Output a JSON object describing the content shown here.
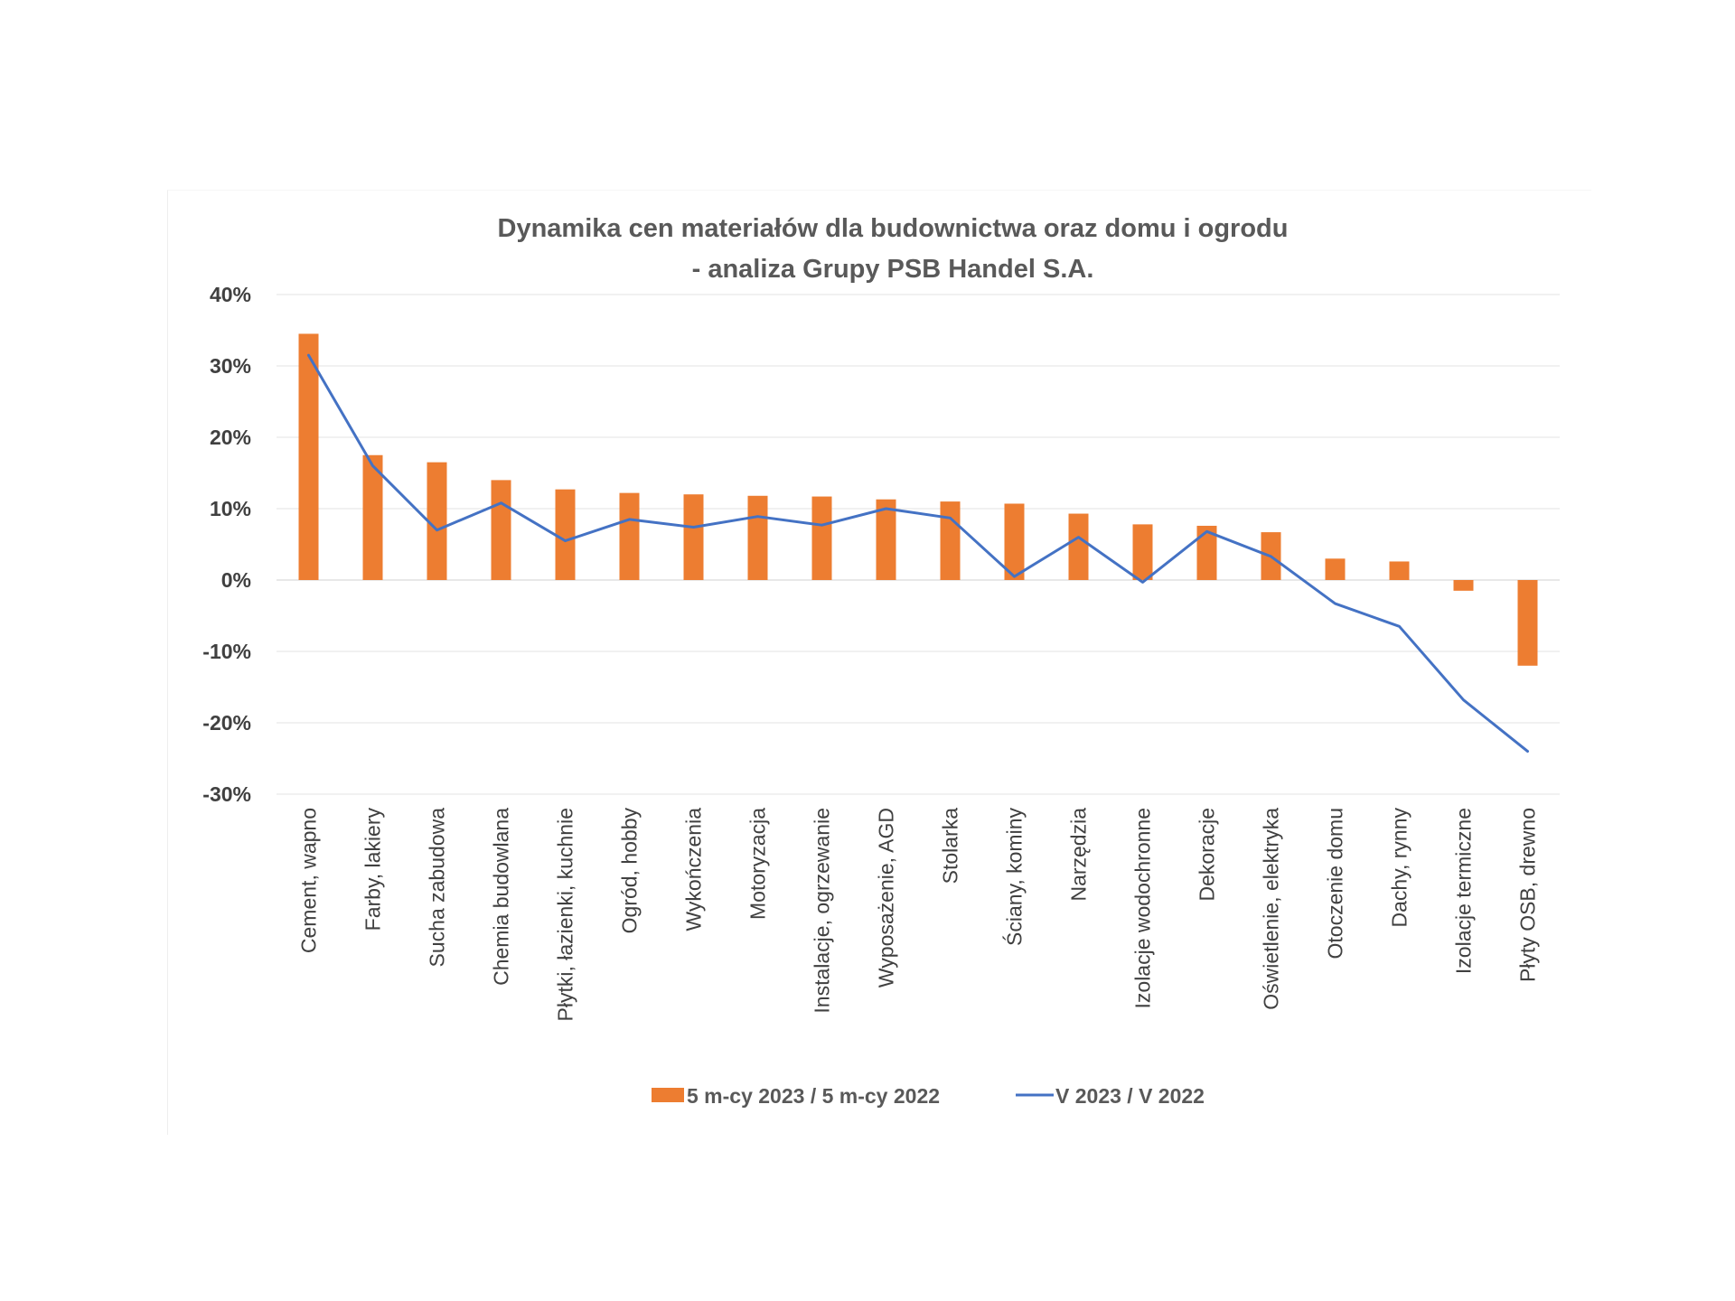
{
  "chart_data": {
    "type": "bar",
    "title": "Dynamika cen materiałów dla budownictwa oraz domu i ogrodu",
    "subtitle": "- analiza Grupy PSB Handel S.A.",
    "categories": [
      "Cement, wapno",
      "Farby, lakiery",
      "Sucha zabudowa",
      "Chemia budowlana",
      "Płytki, łazienki, kuchnie",
      "Ogród, hobby",
      "Wykończenia",
      "Motoryzacja",
      "Instalacje, ogrzewanie",
      "Wyposażenie, AGD",
      "Stolarka",
      "Ściany, kominy",
      "Narzędzia",
      "Izolacje wodochronne",
      "Dekoracje",
      "Oświetlenie, elektryka",
      "Otoczenie domu",
      "Dachy, rynny",
      "Izolacje termiczne",
      "Płyty OSB, drewno"
    ],
    "series": [
      {
        "name": "5 m-cy 2023 / 5 m-cy 2022",
        "type": "bar",
        "color": "#ED7D31",
        "values": [
          34.5,
          17.5,
          16.5,
          14.0,
          12.7,
          12.2,
          12.0,
          11.8,
          11.7,
          11.3,
          11.0,
          10.7,
          9.3,
          7.8,
          7.6,
          6.7,
          3.0,
          2.6,
          -1.5,
          -12.0
        ]
      },
      {
        "name": "V 2023 / V 2022",
        "type": "line",
        "color": "#4472C4",
        "values": [
          31.5,
          16.0,
          7.0,
          10.8,
          5.5,
          8.5,
          7.4,
          8.9,
          7.7,
          10.0,
          8.7,
          0.5,
          6.0,
          -0.3,
          6.8,
          3.3,
          -3.3,
          -6.5,
          -16.8,
          -24.0
        ]
      }
    ],
    "yticks": [
      "40%",
      "30%",
      "20%",
      "10%",
      "0%",
      "-10%",
      "-20%",
      "-30%"
    ],
    "ylim": [
      -30,
      40
    ],
    "grid": true,
    "legend": "bottom"
  }
}
